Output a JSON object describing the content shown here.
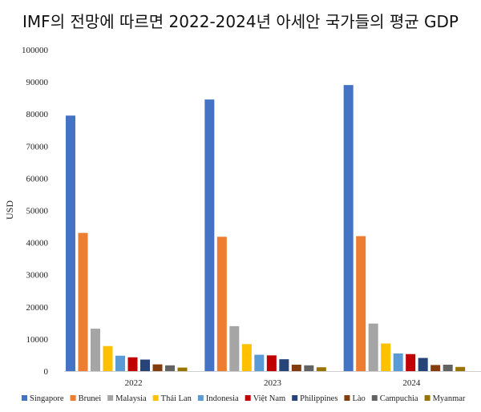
{
  "chart_data": {
    "type": "bar",
    "title": "IMF의 전망에 따르면 2022-2024년 아세안 국가들의 평균 GDP",
    "xlabel": "",
    "ylabel": "USD",
    "ylim": [
      0,
      100000
    ],
    "yticks": [
      0,
      10000,
      20000,
      30000,
      40000,
      50000,
      60000,
      70000,
      80000,
      90000,
      100000
    ],
    "grid": false,
    "legend_position": "bottom",
    "categories": [
      "2022",
      "2023",
      "2024"
    ],
    "series": [
      {
        "name": "Singapore",
        "color": "#4472C4",
        "values": [
          79500,
          84500,
          89000
        ]
      },
      {
        "name": "Brunei",
        "color": "#ED7D31",
        "values": [
          43000,
          41800,
          42000
        ]
      },
      {
        "name": "Malaysia",
        "color": "#A5A5A5",
        "values": [
          13200,
          14000,
          14800
        ]
      },
      {
        "name": "Thái Lan",
        "color": "#FFC000",
        "values": [
          7800,
          8400,
          8600
        ]
      },
      {
        "name": "Indonesia",
        "color": "#5B9BD5",
        "values": [
          4800,
          5100,
          5500
        ]
      },
      {
        "name": "Việt Nam",
        "color": "#C00000",
        "values": [
          4300,
          4900,
          5300
        ]
      },
      {
        "name": "Philippines",
        "color": "#264478",
        "values": [
          3600,
          3700,
          4100
        ]
      },
      {
        "name": "Lào",
        "color": "#843C0C",
        "values": [
          2100,
          2000,
          1900
        ]
      },
      {
        "name": "Campuchia",
        "color": "#636363",
        "values": [
          1800,
          1800,
          2000
        ]
      },
      {
        "name": "Myanmar",
        "color": "#997300",
        "values": [
          1100,
          1200,
          1300
        ]
      }
    ]
  }
}
